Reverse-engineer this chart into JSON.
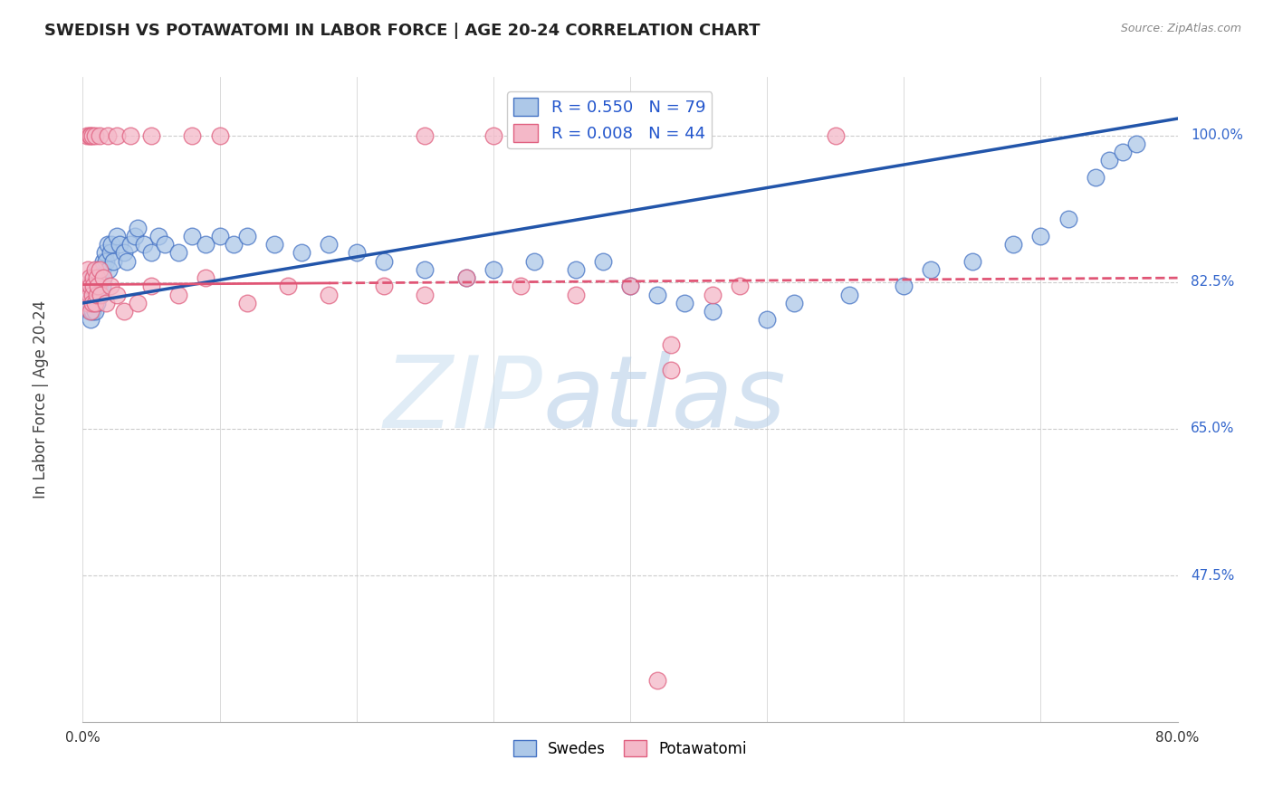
{
  "title": "SWEDISH VS POTAWATOMI IN LABOR FORCE | AGE 20-24 CORRELATION CHART",
  "source": "Source: ZipAtlas.com",
  "ylabel": "In Labor Force | Age 20-24",
  "xlim": [
    0.0,
    0.8
  ],
  "ylim": [
    0.3,
    1.07
  ],
  "ytick_positions": [
    0.475,
    0.65,
    0.825,
    1.0
  ],
  "yticklabels": [
    "47.5%",
    "65.0%",
    "82.5%",
    "100.0%"
  ],
  "watermark_zip": "ZIP",
  "watermark_atlas": "atlas",
  "legend_blue_r": "R = 0.550",
  "legend_blue_n": "N = 79",
  "legend_pink_r": "R = 0.008",
  "legend_pink_n": "N = 44",
  "blue_fill": "#adc8e8",
  "blue_edge": "#4472c4",
  "pink_fill": "#f4b8c8",
  "pink_edge": "#e06080",
  "line_blue_color": "#2255aa",
  "line_pink_color": "#e05575",
  "background": "#ffffff",
  "grid_color": "#cccccc",
  "swedes_label": "Swedes",
  "potawatomi_label": "Potawatomi",
  "blue_x": [
    0.003,
    0.004,
    0.005,
    0.005,
    0.006,
    0.006,
    0.007,
    0.007,
    0.007,
    0.008,
    0.008,
    0.009,
    0.009,
    0.009,
    0.01,
    0.01,
    0.01,
    0.011,
    0.011,
    0.012,
    0.012,
    0.013,
    0.013,
    0.014,
    0.014,
    0.015,
    0.015,
    0.016,
    0.017,
    0.018,
    0.019,
    0.02,
    0.021,
    0.022,
    0.025,
    0.027,
    0.03,
    0.032,
    0.035,
    0.038,
    0.04,
    0.045,
    0.05,
    0.055,
    0.06,
    0.07,
    0.08,
    0.09,
    0.1,
    0.11,
    0.12,
    0.14,
    0.16,
    0.18,
    0.2,
    0.22,
    0.25,
    0.28,
    0.3,
    0.33,
    0.36,
    0.38,
    0.4,
    0.42,
    0.44,
    0.46,
    0.5,
    0.52,
    0.56,
    0.6,
    0.62,
    0.65,
    0.68,
    0.7,
    0.72,
    0.74,
    0.75,
    0.76,
    0.77
  ],
  "blue_y": [
    0.8,
    0.81,
    0.79,
    0.82,
    0.78,
    0.8,
    0.79,
    0.81,
    0.83,
    0.8,
    0.82,
    0.81,
    0.79,
    0.83,
    0.8,
    0.82,
    0.84,
    0.81,
    0.83,
    0.82,
    0.84,
    0.83,
    0.81,
    0.84,
    0.82,
    0.85,
    0.83,
    0.86,
    0.85,
    0.87,
    0.84,
    0.86,
    0.87,
    0.85,
    0.88,
    0.87,
    0.86,
    0.85,
    0.87,
    0.88,
    0.89,
    0.87,
    0.86,
    0.88,
    0.87,
    0.86,
    0.88,
    0.87,
    0.88,
    0.87,
    0.88,
    0.87,
    0.86,
    0.87,
    0.86,
    0.85,
    0.84,
    0.83,
    0.84,
    0.85,
    0.84,
    0.85,
    0.82,
    0.81,
    0.8,
    0.79,
    0.78,
    0.8,
    0.81,
    0.82,
    0.84,
    0.85,
    0.87,
    0.88,
    0.9,
    0.95,
    0.97,
    0.98,
    0.99
  ],
  "pink_x": [
    0.003,
    0.004,
    0.004,
    0.005,
    0.005,
    0.006,
    0.006,
    0.007,
    0.007,
    0.008,
    0.008,
    0.009,
    0.009,
    0.01,
    0.01,
    0.011,
    0.012,
    0.013,
    0.015,
    0.017,
    0.02,
    0.025,
    0.03,
    0.04,
    0.05,
    0.07,
    0.09,
    0.12,
    0.15,
    0.18,
    0.22,
    0.25,
    0.28,
    0.32,
    0.36,
    0.4,
    0.43,
    0.43,
    0.46,
    0.48,
    0.05,
    0.08,
    0.1,
    0.42
  ],
  "pink_y": [
    0.82,
    0.8,
    0.84,
    0.81,
    0.83,
    0.79,
    0.82,
    0.81,
    0.8,
    0.83,
    0.82,
    0.84,
    0.8,
    0.81,
    0.83,
    0.82,
    0.84,
    0.81,
    0.83,
    0.8,
    0.82,
    0.81,
    0.79,
    0.8,
    0.82,
    0.81,
    0.83,
    0.8,
    0.82,
    0.81,
    0.82,
    0.81,
    0.83,
    0.82,
    0.81,
    0.82,
    0.75,
    0.72,
    0.81,
    0.82,
    1.0,
    1.0,
    1.0,
    0.35
  ],
  "pink_top_x": [
    0.003,
    0.005,
    0.006,
    0.007,
    0.009,
    0.012,
    0.018,
    0.025,
    0.035,
    0.25,
    0.3,
    0.55
  ],
  "pink_top_y": [
    1.0,
    1.0,
    1.0,
    1.0,
    1.0,
    1.0,
    1.0,
    1.0,
    1.0,
    1.0,
    1.0,
    1.0
  ]
}
